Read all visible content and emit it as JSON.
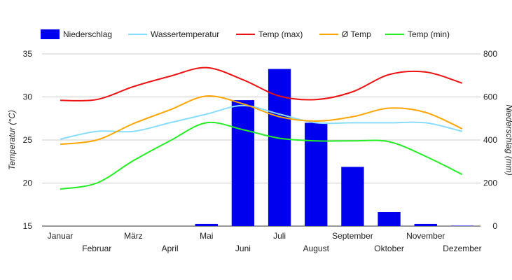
{
  "chart_data": {
    "type": "bar+line",
    "categories": [
      "Januar",
      "Februar",
      "März",
      "April",
      "Mai",
      "Juni",
      "Juli",
      "August",
      "September",
      "Oktober",
      "November",
      "Dezember"
    ],
    "bars": {
      "name": "Niederschlag",
      "axis": "right",
      "color": "#0000ee",
      "values": [
        0,
        0,
        0,
        0,
        10,
        585,
        730,
        480,
        275,
        65,
        10,
        2
      ]
    },
    "series": [
      {
        "name": "Wassertemperatur",
        "color": "#87ddff",
        "axis": "left",
        "values": [
          25.1,
          26.0,
          26.0,
          27.0,
          28.0,
          29.0,
          28.0,
          27.0,
          27.0,
          27.0,
          27.0,
          26.0
        ]
      },
      {
        "name": "Temp (max)",
        "color": "#ee1111",
        "axis": "left",
        "values": [
          29.6,
          29.7,
          31.2,
          32.4,
          33.4,
          32.0,
          30.1,
          29.7,
          30.6,
          32.6,
          32.9,
          31.6
        ]
      },
      {
        "name": "Ø Temp",
        "color": "#ffa500",
        "axis": "left",
        "values": [
          24.5,
          25.0,
          26.9,
          28.5,
          30.1,
          29.2,
          27.7,
          27.2,
          27.7,
          28.7,
          28.2,
          26.3
        ]
      },
      {
        "name": "Temp (min)",
        "color": "#22ee22",
        "axis": "left",
        "values": [
          19.3,
          20.0,
          22.6,
          24.9,
          27.0,
          26.2,
          25.2,
          24.9,
          24.9,
          24.8,
          23.1,
          21.0
        ]
      }
    ],
    "ylabel_left": "Temperatur (°C)",
    "ylabel_right": "Niederschlag (mm)",
    "ylim_left": [
      15,
      35
    ],
    "yticks_left": [
      "15",
      "20",
      "25",
      "30",
      "35"
    ],
    "ylim_right": [
      0,
      800
    ],
    "yticks_right": [
      "0",
      "200",
      "400",
      "600",
      "800"
    ],
    "grid": true,
    "legend_position": "top-left"
  }
}
